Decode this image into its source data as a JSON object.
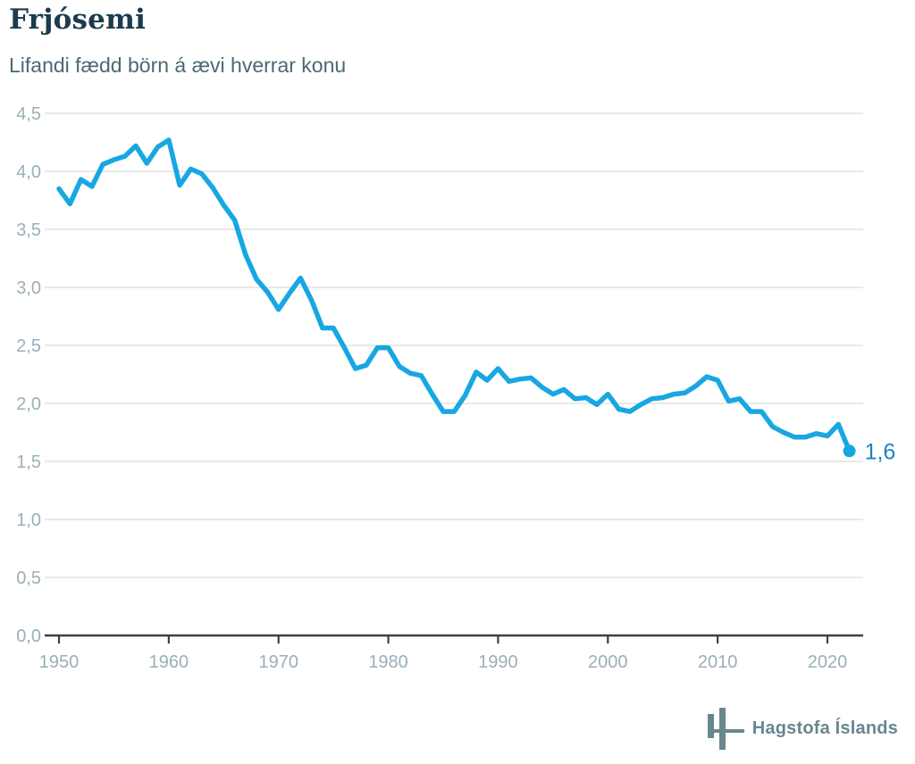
{
  "header": {
    "title": "Frjósemi",
    "subtitle": "Lifandi fædd börn á ævi hverrar konu"
  },
  "footer": {
    "source": "Hagstofa Íslands"
  },
  "colors": {
    "line": "#17a7e2",
    "end_dot": "#17a7e2",
    "end_label": "#2181be",
    "title": "#1c3b4d",
    "subtitle": "#4c6874",
    "tick_label": "#9aafb8",
    "gridline": "#e2e2e2",
    "axis": "#3f3f3f",
    "logo": "#68868f",
    "background": "#ffffff"
  },
  "chart_data": {
    "type": "line",
    "title": "Frjósemi",
    "subtitle": "Lifandi fædd börn á ævi hverrar konu",
    "xlabel": "",
    "ylabel": "",
    "xlim": [
      1950,
      2023
    ],
    "ylim": [
      0,
      4.5
    ],
    "grid": true,
    "legend": "none",
    "decimal_separator": ",",
    "end_point_label": "1,6",
    "xticks": [
      1950,
      1960,
      1970,
      1980,
      1990,
      2000,
      2010,
      2020
    ],
    "xtick_labels": [
      "1950",
      "1960",
      "1970",
      "1980",
      "1990",
      "2000",
      "2010",
      "2020"
    ],
    "yticks": [
      0,
      0.5,
      1.0,
      1.5,
      2.0,
      2.5,
      3.0,
      3.5,
      4.0,
      4.5
    ],
    "ytick_labels": [
      "0,0",
      "0,5",
      "1,0",
      "1,5",
      "2,0",
      "2,5",
      "3,0",
      "3,5",
      "4,0",
      "4,5"
    ],
    "series": [
      {
        "name": "Frjósemi (lifandi fædd börn á ævi hverrar konu)",
        "x": [
          1950,
          1951,
          1952,
          1953,
          1954,
          1955,
          1956,
          1957,
          1958,
          1959,
          1960,
          1961,
          1962,
          1963,
          1964,
          1965,
          1966,
          1967,
          1968,
          1969,
          1970,
          1971,
          1972,
          1973,
          1974,
          1975,
          1976,
          1977,
          1978,
          1979,
          1980,
          1981,
          1982,
          1983,
          1984,
          1985,
          1986,
          1987,
          1988,
          1989,
          1990,
          1991,
          1992,
          1993,
          1994,
          1995,
          1996,
          1997,
          1998,
          1999,
          2000,
          2001,
          2002,
          2003,
          2004,
          2005,
          2006,
          2007,
          2008,
          2009,
          2010,
          2011,
          2012,
          2013,
          2014,
          2015,
          2016,
          2017,
          2018,
          2019,
          2020,
          2021,
          2022
        ],
        "values": [
          3.85,
          3.72,
          3.93,
          3.87,
          4.06,
          4.1,
          4.13,
          4.22,
          4.07,
          4.21,
          4.27,
          3.88,
          4.02,
          3.98,
          3.86,
          3.71,
          3.58,
          3.28,
          3.07,
          2.96,
          2.81,
          2.95,
          3.08,
          2.89,
          2.65,
          2.65,
          2.48,
          2.3,
          2.33,
          2.48,
          2.48,
          2.32,
          2.26,
          2.24,
          2.08,
          1.93,
          1.93,
          2.07,
          2.27,
          2.2,
          2.3,
          2.19,
          2.21,
          2.22,
          2.14,
          2.08,
          2.12,
          2.04,
          2.05,
          1.99,
          2.08,
          1.95,
          1.93,
          1.99,
          2.04,
          2.05,
          2.08,
          2.09,
          2.15,
          2.23,
          2.2,
          2.02,
          2.04,
          1.93,
          1.93,
          1.8,
          1.75,
          1.71,
          1.71,
          1.74,
          1.72,
          1.82,
          1.59
        ]
      }
    ]
  }
}
